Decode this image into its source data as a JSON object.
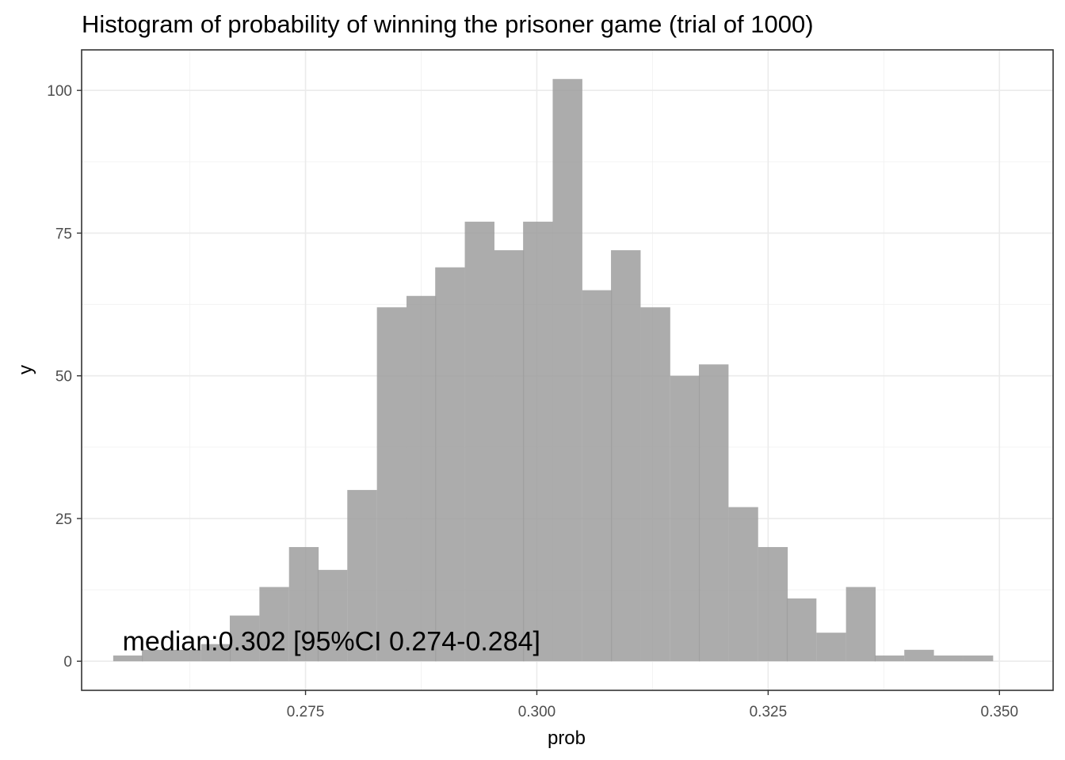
{
  "chart_data": {
    "type": "bar",
    "title": "Histogram of probability of winning the prisoner game (trial of 1000)",
    "xlabel": "prob",
    "ylabel": "y",
    "annotation": "median:0.302 [95%CI 0.274-0.284]",
    "xlim": [
      0.2508,
      0.3558
    ],
    "ylim": [
      -5.1,
      107.1
    ],
    "x_ticks": [
      0.275,
      0.3,
      0.325,
      0.35
    ],
    "x_tick_labels": [
      "0.275",
      "0.300",
      "0.325",
      "0.350"
    ],
    "y_ticks": [
      0,
      25,
      50,
      75,
      100
    ],
    "y_tick_labels": [
      "0",
      "25",
      "50",
      "75",
      "100"
    ],
    "grid": true,
    "bar_color": "#9e9e9e",
    "bin_width": 0.00317,
    "x": [
      0.2558,
      0.2589,
      0.2621,
      0.2653,
      0.2684,
      0.2716,
      0.2748,
      0.2779,
      0.2811,
      0.2843,
      0.2875,
      0.2906,
      0.2938,
      0.297,
      0.3001,
      0.3033,
      0.3065,
      0.3096,
      0.3128,
      0.316,
      0.3191,
      0.3223,
      0.3255,
      0.3286,
      0.3318,
      0.335,
      0.3381,
      0.3413,
      0.3445,
      0.3477
    ],
    "values": [
      1,
      2,
      2,
      3,
      8,
      13,
      20,
      16,
      30,
      62,
      64,
      69,
      77,
      72,
      77,
      102,
      65,
      72,
      62,
      50,
      52,
      27,
      20,
      11,
      5,
      13,
      1,
      2,
      1,
      1
    ]
  }
}
